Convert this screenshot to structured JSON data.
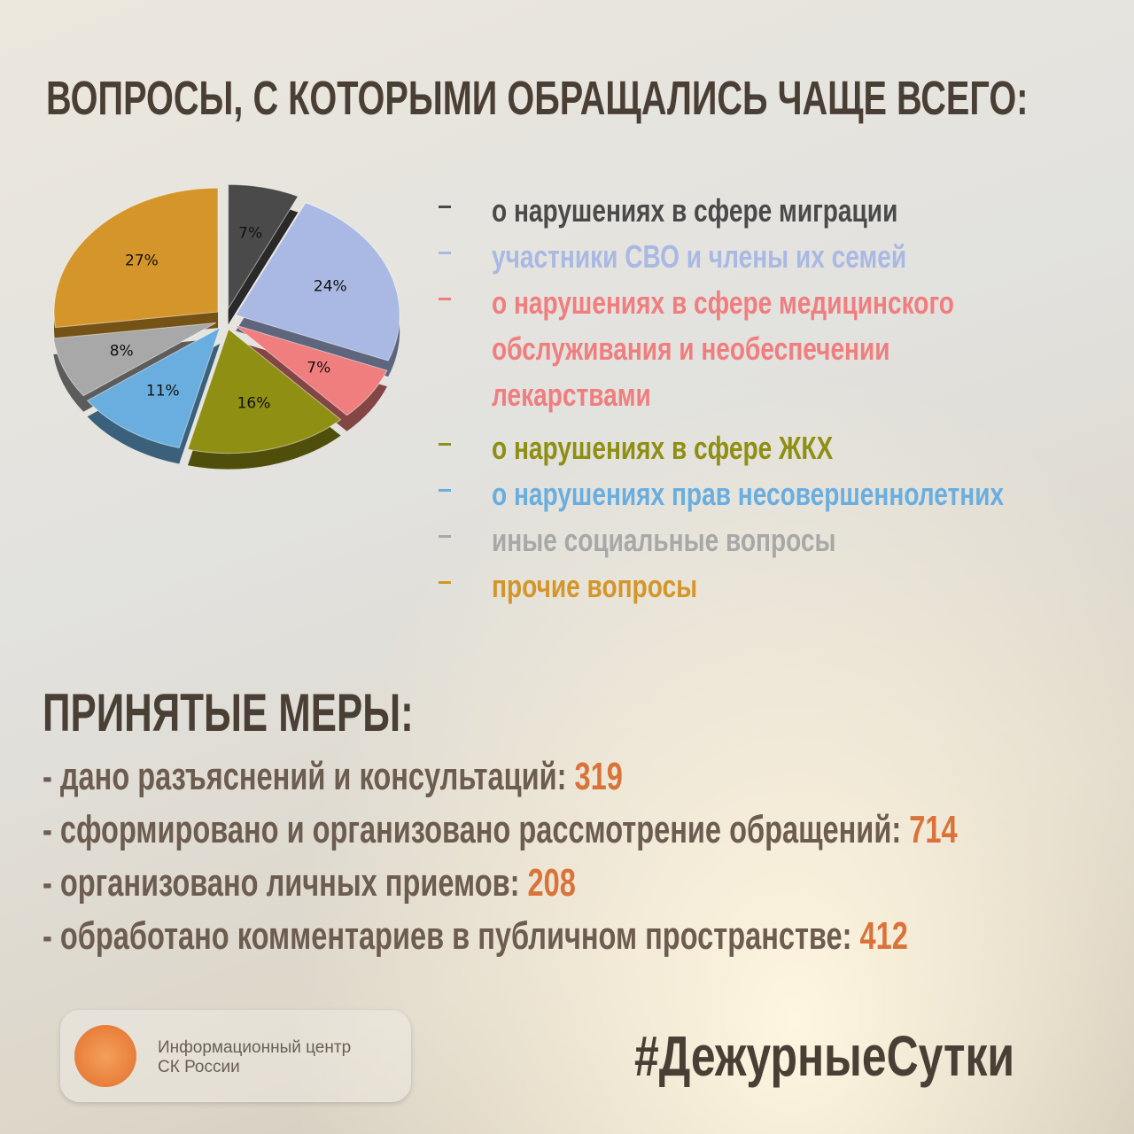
{
  "chart_data": {
    "type": "pie",
    "title": "ВОПРОСЫ, С КОТОРЫМИ ОБРАЩАЛИСЬ ЧАЩЕ ВСЕГО:",
    "categories": [
      "о нарушениях в сфере миграции",
      "участники СВО и члены их семей",
      "о нарушениях в сфере медицинского обслуживания и необеспечении лекарствами",
      "о нарушениях в сфере ЖКХ",
      "о нарушениях прав несовершеннолетних",
      "иные социальные вопросы",
      "прочие вопросы"
    ],
    "values": [
      7,
      24,
      7,
      16,
      11,
      8,
      27
    ],
    "value_labels": [
      "7%",
      "24%",
      "7%",
      "16%",
      "11%",
      "8%",
      "27%"
    ],
    "colors": [
      "#4a4a4a",
      "#a9b9e3",
      "#f07e7e",
      "#8f8f14",
      "#6aaee0",
      "#a8a8a8",
      "#d4962a"
    ]
  },
  "measures": {
    "title": "ПРИНЯТЫЕ МЕРЫ:",
    "items": [
      {
        "label": "- дано разъяснений и консультаций:",
        "value": 319
      },
      {
        "label": "- сформировано и организовано рассмотрение обращений:",
        "value": 714
      },
      {
        "label": "- организовано личных приемов:",
        "value": 208
      },
      {
        "label": "- обработано комментариев в публичном пространстве:",
        "value": 412
      }
    ]
  },
  "footer": {
    "logo_lines": [
      "Информационный центр",
      "СК России"
    ],
    "hashtag": "#ДежурныеСутки"
  }
}
